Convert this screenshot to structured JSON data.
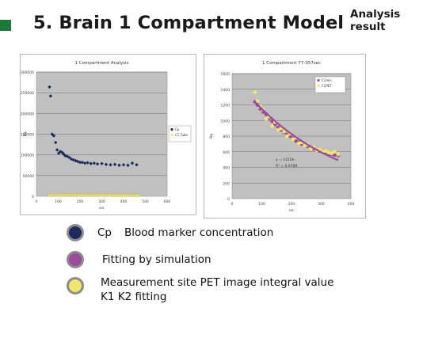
{
  "slide": {
    "title": "5. Brain 1 Compartment Model",
    "subtitle_line1": "Analysis",
    "subtitle_line2": "result"
  },
  "colors": {
    "title_bullet": "#1b7a3a",
    "plot_area": "#c0c0c0",
    "blood_marker": "#1f2a5c",
    "fitting": "#9b4a9e",
    "pet_measurement": "#f0e66a"
  },
  "legend": [
    {
      "symbol": "Cp",
      "label": "Blood marker concentration",
      "color": "#1f2a5c"
    },
    {
      "symbol": "",
      "label": "Fitting by simulation",
      "color": "#9b4a9e"
    },
    {
      "symbol": "",
      "label": "Measurement site PET image integral value",
      "label2": "K1 K2 fitting",
      "color": "#f0e66a"
    }
  ],
  "chart_data": [
    {
      "type": "scatter",
      "title": "1 Compartment Analysis",
      "xlabel": "sec",
      "ylabel": "Bq",
      "xlim": [
        0,
        600
      ],
      "ylim": [
        0,
        300000
      ],
      "x_ticks": [
        "0",
        "100",
        "200",
        "300",
        "400",
        "500",
        "600"
      ],
      "y_ticks": [
        "0",
        "50000",
        "100000",
        "150000",
        "200000",
        "250000",
        "300000"
      ],
      "grid": "horizontal",
      "legend_position": "right",
      "series": [
        {
          "name": "Cp",
          "color": "#1f2a5c",
          "x": [
            60,
            65,
            72,
            80,
            88,
            95,
            102,
            110,
            118,
            125,
            132,
            140,
            150,
            160,
            170,
            180,
            190,
            200,
            210,
            222,
            235,
            250,
            265,
            280,
            300,
            320,
            340,
            360,
            380,
            400,
            420,
            440,
            460
          ],
          "y": [
            264000,
            242000,
            150000,
            146000,
            130000,
            112000,
            104000,
            108000,
            106000,
            102000,
            98000,
            97000,
            94000,
            90000,
            88000,
            86000,
            84000,
            82000,
            82000,
            80000,
            81000,
            79000,
            80000,
            78000,
            79000,
            77000,
            76000,
            77000,
            75000,
            76000,
            75000,
            80000,
            76000
          ]
        },
        {
          "name": "C1 Tube",
          "color": "#f0e66a",
          "x": [
            60,
            70,
            80,
            90,
            100,
            110,
            120,
            130,
            140,
            150,
            160,
            170,
            180,
            190,
            200,
            210,
            220,
            230,
            240,
            250,
            260,
            270,
            280,
            290,
            300,
            310,
            320,
            330,
            340,
            350,
            360,
            370,
            380,
            390,
            400,
            410,
            420,
            430,
            440,
            450,
            460,
            470
          ],
          "y": [
            3000,
            3500,
            3800,
            3800,
            3700,
            3700,
            3600,
            3600,
            3500,
            3500,
            3500,
            3400,
            3400,
            3400,
            3300,
            3300,
            3300,
            3300,
            3200,
            3200,
            3200,
            3200,
            3100,
            3100,
            3100,
            3100,
            3000,
            3000,
            3000,
            3000,
            3000,
            2900,
            2900,
            2900,
            2900,
            2900,
            2800,
            2800,
            2800,
            2800,
            2800,
            2700
          ]
        }
      ]
    },
    {
      "type": "scatter",
      "title": "1 Compartment 77-357sec",
      "xlabel": "sec",
      "ylabel": "Bq",
      "xlim": [
        0,
        400
      ],
      "ylim": [
        0,
        1600
      ],
      "x_ticks": [
        "0",
        "100",
        "200",
        "300",
        "400"
      ],
      "y_ticks": [
        "0",
        "200",
        "400",
        "600",
        "800",
        "1000",
        "1200",
        "1400",
        "1600"
      ],
      "grid": "horizontal",
      "legend_position": "top-right",
      "annotations": [
        "y = 1410e",
        "R² = 0.9789"
      ],
      "series": [
        {
          "name": "C1min",
          "color": "#9b4a9e",
          "x": [
            77,
            85,
            95,
            105,
            115,
            125,
            135,
            145,
            155,
            165,
            175,
            185,
            195,
            205,
            215,
            225,
            235,
            245,
            255,
            265,
            275,
            285,
            295,
            305,
            315,
            325,
            335,
            345,
            357
          ],
          "y": [
            1240,
            1200,
            1150,
            1110,
            1080,
            1030,
            990,
            950,
            910,
            880,
            850,
            820,
            800,
            770,
            740,
            720,
            700,
            690,
            670,
            650,
            640,
            620,
            610,
            600,
            590,
            580,
            570,
            560,
            555
          ]
        },
        {
          "name": "C1PET",
          "color": "#f0e66a",
          "x": [
            77,
            85,
            95,
            105,
            115,
            125,
            135,
            145,
            155,
            165,
            175,
            185,
            195,
            205,
            215,
            225,
            235,
            245,
            255,
            265,
            275,
            285,
            295,
            305,
            315,
            325,
            335,
            345,
            357
          ],
          "y": [
            1360,
            1250,
            1180,
            1140,
            1020,
            1050,
            930,
            980,
            880,
            900,
            860,
            800,
            830,
            760,
            780,
            710,
            720,
            680,
            690,
            640,
            660,
            620,
            630,
            600,
            610,
            590,
            580,
            600,
            570
          ]
        },
        {
          "name": "",
          "kind": "fit-line",
          "color": "#9b4a9e",
          "x": [
            77,
            357
          ],
          "amplitude": 1410,
          "decay": 0.0033
        }
      ]
    }
  ]
}
